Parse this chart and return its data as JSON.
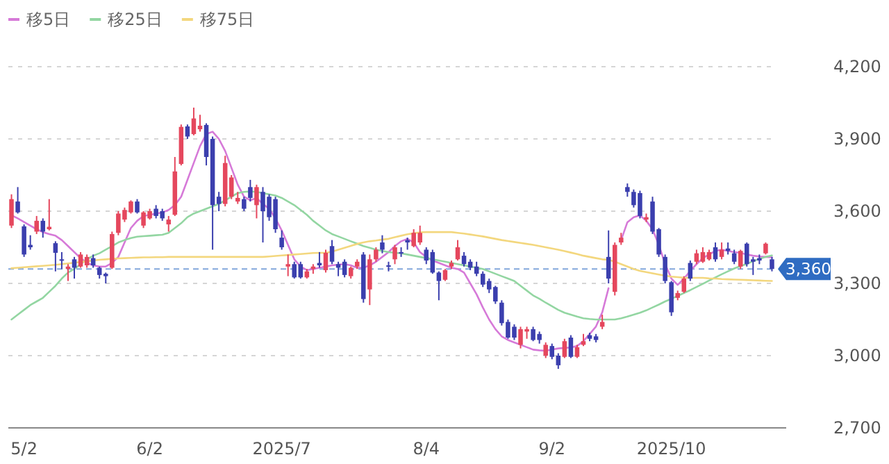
{
  "chart_data": {
    "type": "candlestick",
    "categories": [
      null,
      null,
      "5/2",
      null,
      null,
      null,
      null,
      null,
      null,
      null,
      null,
      null,
      null,
      null,
      null,
      null,
      null,
      null,
      null,
      null,
      null,
      null,
      "6/2",
      null,
      null,
      null,
      null,
      null,
      null,
      null,
      null,
      null,
      null,
      null,
      null,
      null,
      null,
      null,
      null,
      null,
      null,
      null,
      null,
      "2025/7",
      null,
      null,
      null,
      null,
      null,
      null,
      null,
      null,
      null,
      null,
      null,
      null,
      null,
      null,
      null,
      null,
      null,
      null,
      null,
      null,
      null,
      null,
      "8/4",
      null,
      null,
      null,
      null,
      null,
      null,
      null,
      null,
      null,
      null,
      null,
      null,
      null,
      null,
      null,
      null,
      null,
      null,
      null,
      "9/2",
      null,
      null,
      null,
      null,
      null,
      null,
      null,
      null,
      null,
      null,
      null,
      null,
      null,
      null,
      null,
      null,
      null,
      null,
      "2025/10",
      null,
      null,
      null,
      null,
      null,
      null,
      null,
      null,
      null,
      null,
      null,
      null,
      null,
      null,
      null,
      null
    ],
    "ohlc": [
      [
        3540,
        3670,
        3530,
        3650
      ],
      [
        3640,
        3700,
        3590,
        3595
      ],
      [
        3537,
        3545,
        3410,
        3420
      ],
      [
        3460,
        3500,
        3440,
        3450
      ],
      [
        3515,
        3580,
        3505,
        3560
      ],
      [
        3560,
        3570,
        3490,
        3515
      ],
      [
        3525,
        3650,
        3520,
        3535
      ],
      [
        3467,
        3475,
        3350,
        3427
      ],
      [
        3400,
        3430,
        3360,
        3395
      ],
      [
        3360,
        3380,
        3310,
        3370
      ],
      [
        3400,
        3410,
        3320,
        3365
      ],
      [
        3370,
        3430,
        3365,
        3420
      ],
      [
        3375,
        3420,
        3365,
        3410
      ],
      [
        3405,
        3420,
        3365,
        3375
      ],
      [
        3365,
        3370,
        3320,
        3335
      ],
      [
        3340,
        3345,
        3300,
        3330
      ],
      [
        3365,
        3515,
        3360,
        3505
      ],
      [
        3510,
        3600,
        3500,
        3590
      ],
      [
        3565,
        3615,
        3555,
        3605
      ],
      [
        3595,
        3645,
        3590,
        3640
      ],
      [
        3640,
        3650,
        3590,
        3595
      ],
      [
        3540,
        3600,
        3530,
        3595
      ],
      [
        3570,
        3610,
        3565,
        3600
      ],
      [
        3610,
        3625,
        3570,
        3580
      ],
      [
        3600,
        3610,
        3560,
        3570
      ],
      [
        3545,
        3580,
        3515,
        3565
      ],
      [
        3585,
        3825,
        3580,
        3765
      ],
      [
        3796,
        3960,
        3790,
        3950
      ],
      [
        3952,
        3960,
        3900,
        3910
      ],
      [
        3920,
        4030,
        3915,
        3985
      ],
      [
        3940,
        4000,
        3930,
        3955
      ],
      [
        3958,
        3965,
        3790,
        3825
      ],
      [
        3900,
        3910,
        3440,
        3625
      ],
      [
        3660,
        3680,
        3600,
        3630
      ],
      [
        3630,
        3830,
        3620,
        3800
      ],
      [
        3660,
        3750,
        3650,
        3740
      ],
      [
        3640,
        3680,
        3630,
        3655
      ],
      [
        3650,
        3660,
        3600,
        3610
      ],
      [
        3700,
        3730,
        3640,
        3655
      ],
      [
        3625,
        3710,
        3570,
        3700
      ],
      [
        3680,
        3700,
        3470,
        3600
      ],
      [
        3660,
        3670,
        3560,
        3575
      ],
      [
        3650,
        3660,
        3510,
        3525
      ],
      [
        3490,
        3520,
        3440,
        3450
      ],
      [
        3370,
        3420,
        3330,
        3380
      ],
      [
        3380,
        3390,
        3320,
        3325
      ],
      [
        3380,
        3390,
        3320,
        3325
      ],
      [
        3325,
        3360,
        3320,
        3350
      ],
      [
        3360,
        3380,
        3340,
        3370
      ],
      [
        3385,
        3430,
        3365,
        3375
      ],
      [
        3355,
        3440,
        3345,
        3427
      ],
      [
        3455,
        3480,
        3380,
        3390
      ],
      [
        3380,
        3390,
        3330,
        3365
      ],
      [
        3390,
        3400,
        3325,
        3335
      ],
      [
        3330,
        3370,
        3320,
        3365
      ],
      [
        3370,
        3400,
        3360,
        3390
      ],
      [
        3420,
        3430,
        3220,
        3235
      ],
      [
        3275,
        3420,
        3210,
        3400
      ],
      [
        3400,
        3450,
        3390,
        3440
      ],
      [
        3470,
        3500,
        3425,
        3440
      ],
      [
        3375,
        3390,
        3350,
        3370
      ],
      [
        3400,
        3460,
        3380,
        3450
      ],
      [
        3430,
        3450,
        3410,
        3425
      ],
      [
        3480,
        3490,
        3440,
        3470
      ],
      [
        3455,
        3525,
        3450,
        3510
      ],
      [
        3470,
        3540,
        3460,
        3510
      ],
      [
        3440,
        3450,
        3380,
        3395
      ],
      [
        3430,
        3440,
        3340,
        3345
      ],
      [
        3345,
        3350,
        3230,
        3310
      ],
      [
        3315,
        3360,
        3310,
        3355
      ],
      [
        3370,
        3395,
        3360,
        3385
      ],
      [
        3400,
        3480,
        3395,
        3450
      ],
      [
        3415,
        3430,
        3370,
        3380
      ],
      [
        3390,
        3400,
        3355,
        3365
      ],
      [
        3370,
        3390,
        3330,
        3340
      ],
      [
        3340,
        3350,
        3285,
        3295
      ],
      [
        3310,
        3320,
        3260,
        3275
      ],
      [
        3285,
        3290,
        3215,
        3225
      ],
      [
        3220,
        3230,
        3125,
        3135
      ],
      [
        3140,
        3150,
        3070,
        3075
      ],
      [
        3120,
        3130,
        3065,
        3075
      ],
      [
        3045,
        3120,
        3030,
        3110
      ],
      [
        3100,
        3120,
        3070,
        3110
      ],
      [
        3110,
        3120,
        3060,
        3065
      ],
      [
        3090,
        3100,
        3050,
        3065
      ],
      [
        3000,
        3055,
        2990,
        3045
      ],
      [
        3040,
        3050,
        2985,
        2995
      ],
      [
        3000,
        3010,
        2945,
        2960
      ],
      [
        2995,
        3070,
        2990,
        3060
      ],
      [
        3075,
        3085,
        2990,
        2995
      ],
      [
        2995,
        3045,
        2990,
        3035
      ],
      [
        3045,
        3090,
        3040,
        3060
      ],
      [
        3085,
        3095,
        3060,
        3070
      ],
      [
        3080,
        3090,
        3055,
        3065
      ],
      [
        3120,
        3170,
        3110,
        3140
      ],
      [
        3410,
        3520,
        3300,
        3320
      ],
      [
        3265,
        3470,
        3250,
        3460
      ],
      [
        3470,
        3510,
        3460,
        3490
      ],
      [
        3700,
        3715,
        3660,
        3680
      ],
      [
        3680,
        3690,
        3615,
        3625
      ],
      [
        3675,
        3685,
        3570,
        3580
      ],
      [
        3565,
        3590,
        3555,
        3575
      ],
      [
        3640,
        3660,
        3505,
        3515
      ],
      [
        3525,
        3530,
        3410,
        3420
      ],
      [
        3410,
        3420,
        3300,
        3310
      ],
      [
        3305,
        3310,
        3165,
        3180
      ],
      [
        3240,
        3270,
        3230,
        3260
      ],
      [
        3265,
        3330,
        3260,
        3320
      ],
      [
        3385,
        3395,
        3310,
        3320
      ],
      [
        3390,
        3440,
        3380,
        3425
      ],
      [
        3390,
        3450,
        3385,
        3430
      ],
      [
        3400,
        3440,
        3395,
        3430
      ],
      [
        3450,
        3470,
        3390,
        3400
      ],
      [
        3410,
        3470,
        3400,
        3440
      ],
      [
        3445,
        3470,
        3420,
        3435
      ],
      [
        3425,
        3440,
        3380,
        3390
      ],
      [
        3370,
        3440,
        3360,
        3435
      ],
      [
        3465,
        3470,
        3370,
        3380
      ],
      [
        3400,
        3410,
        3335,
        3390
      ],
      [
        3405,
        3420,
        3380,
        3395
      ],
      [
        3425,
        3470,
        3420,
        3465
      ],
      [
        3400,
        3410,
        3350,
        3360
      ]
    ],
    "colors": [
      "#e5475d",
      "#3b3fae",
      "#3b3fae",
      "#3b3fae",
      "#e5475d",
      "#3b3fae",
      "#e5475d",
      "#3b3fae",
      "#3b3fae",
      "#e5475d",
      "#3b3fae",
      "#e5475d",
      "#e5475d",
      "#3b3fae",
      "#3b3fae",
      "#3b3fae",
      "#e5475d",
      "#e5475d",
      "#e5475d",
      "#e5475d",
      "#3b3fae",
      "#e5475d",
      "#e5475d",
      "#3b3fae",
      "#3b3fae",
      "#e5475d",
      "#e5475d",
      "#e5475d",
      "#3b3fae",
      "#e5475d",
      "#e5475d",
      "#3b3fae",
      "#3b3fae",
      "#3b3fae",
      "#e5475d",
      "#e5475d",
      "#e5475d",
      "#3b3fae",
      "#3b3fae",
      "#e5475d",
      "#3b3fae",
      "#3b3fae",
      "#3b3fae",
      "#3b3fae",
      "#e5475d",
      "#3b3fae",
      "#3b3fae",
      "#e5475d",
      "#e5475d",
      "#3b3fae",
      "#e5475d",
      "#3b3fae",
      "#3b3fae",
      "#3b3fae",
      "#e5475d",
      "#e5475d",
      "#3b3fae",
      "#e5475d",
      "#e5475d",
      "#3b3fae",
      "#3b3fae",
      "#e5475d",
      "#3b3fae",
      "#3b3fae",
      "#e5475d",
      "#e5475d",
      "#3b3fae",
      "#3b3fae",
      "#3b3fae",
      "#e5475d",
      "#e5475d",
      "#e5475d",
      "#3b3fae",
      "#3b3fae",
      "#3b3fae",
      "#3b3fae",
      "#3b3fae",
      "#3b3fae",
      "#3b3fae",
      "#3b3fae",
      "#3b3fae",
      "#e5475d",
      "#e5475d",
      "#3b3fae",
      "#3b3fae",
      "#e5475d",
      "#3b3fae",
      "#3b3fae",
      "#e5475d",
      "#3b3fae",
      "#e5475d",
      "#e5475d",
      "#3b3fae",
      "#3b3fae",
      "#e5475d",
      "#3b3fae",
      "#e5475d",
      "#e5475d",
      "#3b3fae",
      "#3b3fae",
      "#3b3fae",
      "#e5475d",
      "#3b3fae",
      "#3b3fae",
      "#3b3fae",
      "#3b3fae",
      "#e5475d",
      "#e5475d",
      "#3b3fae",
      "#e5475d",
      "#e5475d",
      "#e5475d",
      "#3b3fae",
      "#e5475d",
      "#3b3fae",
      "#3b3fae",
      "#e5475d",
      "#3b3fae",
      "#3b3fae",
      "#3b3fae",
      "#e5475d",
      "#3b3fae"
    ],
    "series": [
      {
        "type": "line",
        "name": "移5日",
        "color": "#d67ad8",
        "values": [
          3583,
          3570,
          3555,
          3540,
          3525,
          3513,
          3505,
          3498,
          3480,
          3455,
          3430,
          3405,
          3385,
          3375,
          3370,
          3370,
          3385,
          3410,
          3470,
          3530,
          3560,
          3580,
          3585,
          3590,
          3594,
          3605,
          3625,
          3660,
          3730,
          3800,
          3870,
          3920,
          3930,
          3900,
          3850,
          3780,
          3710,
          3660,
          3645,
          3655,
          3630,
          3610,
          3570,
          3520,
          3460,
          3400,
          3370,
          3355,
          3360,
          3365,
          3370,
          3375,
          3378,
          3380,
          3375,
          3365,
          3365,
          3375,
          3390,
          3410,
          3430,
          3455,
          3475,
          3485,
          3470,
          3430,
          3410,
          3395,
          3385,
          3375,
          3365,
          3360,
          3345,
          3300,
          3255,
          3200,
          3150,
          3110,
          3080,
          3065,
          3055,
          3045,
          3035,
          3025,
          3022,
          3020,
          3025,
          3030,
          3032,
          3034,
          3040,
          3060,
          3090,
          3121,
          3180,
          3280,
          null,
          3480,
          3554,
          3575,
          3583,
          3560,
          3525,
          3460,
          3381,
          3320,
          3294,
          3320,
          3352,
          3380,
          3405,
          3420,
          3435,
          3440,
          3435,
          3430,
          3427,
          3420,
          3415,
          3412,
          3410,
          3408
        ]
      },
      {
        "type": "line",
        "name": "移25日",
        "color": "#93d6a2",
        "values": [
          3150,
          3170,
          3190,
          3210,
          3225,
          3240,
          3265,
          3290,
          3320,
          3345,
          3360,
          3380,
          3400,
          3415,
          3425,
          3440,
          3455,
          3470,
          3480,
          3488,
          3494,
          3496,
          3498,
          3500,
          3502,
          3510,
          3530,
          3550,
          3575,
          3590,
          3600,
          3610,
          3620,
          3630,
          3645,
          3660,
          3675,
          3680,
          3682,
          3680,
          3675,
          3670,
          3665,
          3655,
          3640,
          3625,
          3605,
          3585,
          3560,
          3540,
          3520,
          3505,
          3495,
          3485,
          3475,
          3465,
          3455,
          3448,
          3440,
          3435,
          3430,
          3427,
          3425,
          3420,
          3415,
          3410,
          3405,
          3400,
          3395,
          3390,
          3385,
          3380,
          3375,
          3370,
          3365,
          3360,
          3350,
          3340,
          3330,
          3320,
          3310,
          3290,
          3270,
          3250,
          3236,
          3220,
          3205,
          3190,
          3178,
          3170,
          3162,
          3155,
          3152,
          3150,
          3150,
          3150,
          3150,
          3155,
          3162,
          3170,
          3178,
          3188,
          3200,
          3212,
          3225,
          3236,
          3248,
          3260,
          3272,
          3285,
          3298,
          3312,
          3325,
          3338,
          3350,
          3362,
          3372,
          3381,
          3392,
          3402,
          3410,
          3416
        ]
      },
      {
        "type": "line",
        "name": "移75日",
        "color": "#f3d77e",
        "values": [
          3363,
          3365,
          3367,
          3369,
          3371,
          3373,
          3375,
          3377,
          3380,
          3383,
          3386,
          3389,
          3392,
          3395,
          3398,
          3400,
          3402,
          3404,
          3405,
          3406,
          3407,
          3408,
          3408,
          3409,
          3409,
          3410,
          3410,
          3410,
          3410,
          3410,
          3410,
          3410,
          3410,
          3410,
          3410,
          3410,
          3410,
          3410,
          3410,
          3410,
          3410,
          3412,
          3414,
          3416,
          3418,
          3420,
          3422,
          3424,
          3426,
          3427,
          3427,
          3432,
          3440,
          3448,
          3456,
          3464,
          3470,
          3475,
          3478,
          3482,
          3485,
          3492,
          3498,
          3504,
          3508,
          3512,
          3513,
          3513,
          3513,
          3513,
          3513,
          3510,
          3507,
          3503,
          3499,
          3495,
          3490,
          3485,
          3480,
          3476,
          3472,
          3468,
          3464,
          3460,
          3455,
          3450,
          3445,
          3440,
          3434,
          3428,
          3422,
          3415,
          3410,
          3405,
          3400,
          3398,
          3390,
          3380,
          3370,
          3360,
          3352,
          3347,
          3342,
          3337,
          3332,
          3328,
          3326,
          3324,
          3323,
          3323,
          3323,
          3321,
          3320,
          3318,
          3317,
          3316,
          3315,
          3314,
          3313,
          3312,
          3311,
          3310
        ]
      }
    ],
    "ylim": [
      2700,
      4200
    ],
    "yticks": [
      {
        "value": 2700,
        "label": "2,700"
      },
      {
        "value": 3000,
        "label": "3,000"
      },
      {
        "value": 3300,
        "label": "3,300"
      },
      {
        "value": 3600,
        "label": "3,600"
      },
      {
        "value": 3900,
        "label": "3,900"
      },
      {
        "value": 4200,
        "label": "4,200"
      }
    ],
    "grid": "y",
    "legend": "top left",
    "marker": "none",
    "ref_lines": [
      {
        "axis": "y",
        "value": 3360,
        "label": "3,360",
        "color": "#2f6cc2",
        "line_style": "dashed"
      }
    ]
  }
}
